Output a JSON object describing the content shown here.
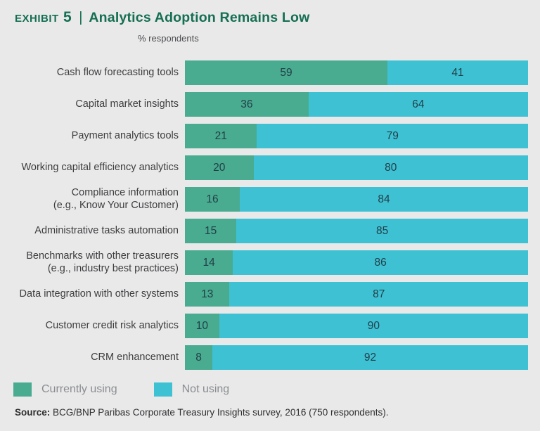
{
  "header": {
    "exhibit_label": "Exhibit 5",
    "separator": "|",
    "title": "Analytics Adoption Remains Low",
    "subtitle": "% respondents"
  },
  "colors": {
    "background": "#e9e9ea",
    "currently_using": "#49ab8f",
    "not_using": "#3ec1d3",
    "title_green": "#156f52"
  },
  "chart_data": {
    "type": "bar",
    "orientation": "horizontal",
    "stacked": true,
    "title": "Analytics Adoption Remains Low",
    "subtitle": "% respondents",
    "xlim": [
      0,
      100
    ],
    "grid": false,
    "legend_position": "bottom-left",
    "categories": [
      "Cash flow forecasting tools",
      "Capital market insights",
      "Payment analytics tools",
      "Working capital efficiency analytics",
      "Compliance information\n(e.g., Know Your Customer)",
      "Administrative tasks automation",
      "Benchmarks with other treasurers\n(e.g., industry best practices)",
      "Data integration with other systems",
      "Customer credit risk analytics",
      "CRM enhancement"
    ],
    "series": [
      {
        "name": "Currently using",
        "color": "#49ab8f",
        "values": [
          59,
          36,
          21,
          20,
          16,
          15,
          14,
          13,
          10,
          8
        ]
      },
      {
        "name": "Not using",
        "color": "#3ec1d3",
        "values": [
          41,
          64,
          79,
          80,
          84,
          85,
          86,
          87,
          90,
          92
        ]
      }
    ]
  },
  "legend": {
    "items": [
      {
        "label": "Currently using",
        "swatch": "green-swatch"
      },
      {
        "label": "Not using",
        "swatch": "cyan-swatch"
      }
    ]
  },
  "footer": {
    "source_label": "Source:",
    "source_text": " BCG/BNP Paribas Corporate Treasury Insights survey, 2016 (750 respondents)."
  }
}
